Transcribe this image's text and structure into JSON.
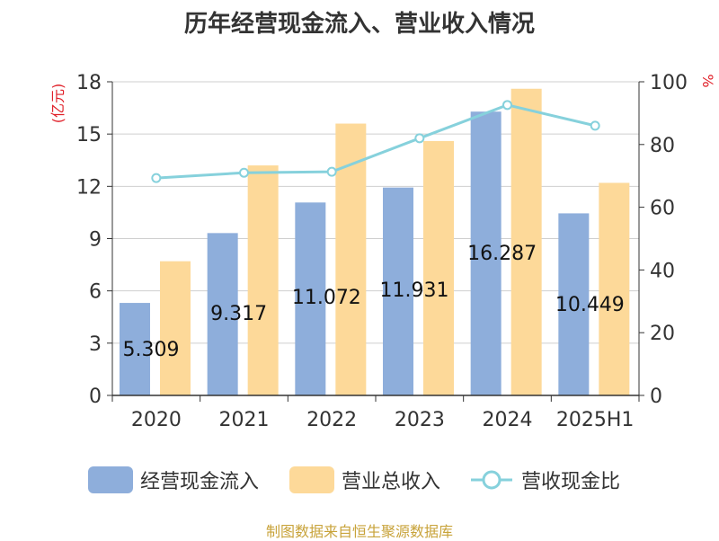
{
  "title": "历年经营现金流入、营业收入情况",
  "source": "制图数据来自恒生聚源数据库",
  "chart_data": {
    "type": "bar",
    "categories": [
      "2020",
      "2021",
      "2022",
      "2023",
      "2024",
      "2025H1"
    ],
    "series": [
      {
        "name": "经营现金流入",
        "kind": "bar",
        "axis": "left",
        "color": "#8eaedb",
        "values": [
          5.309,
          9.317,
          11.072,
          11.931,
          16.287,
          10.449
        ],
        "labels": [
          "5.309",
          "9.317",
          "11.072",
          "11.931",
          "16.287",
          "10.449"
        ]
      },
      {
        "name": "营业总收入",
        "kind": "bar",
        "axis": "left",
        "color": "#fdd999",
        "values": [
          7.7,
          13.2,
          15.6,
          14.6,
          17.6,
          12.2
        ]
      },
      {
        "name": "营收现金比",
        "kind": "line",
        "axis": "right",
        "color": "#86d1dc",
        "values": [
          69.3,
          71.0,
          71.3,
          82.0,
          92.6,
          86.0
        ]
      }
    ],
    "yleft": {
      "label": "(亿元)",
      "min": 0,
      "max": 18,
      "ticks": [
        0,
        3,
        6,
        9,
        12,
        15,
        18
      ]
    },
    "yright": {
      "label": "%",
      "min": 0,
      "max": 100,
      "ticks": [
        0,
        20,
        40,
        60,
        80,
        100
      ]
    },
    "grid": true,
    "legend_position": "bottom"
  }
}
